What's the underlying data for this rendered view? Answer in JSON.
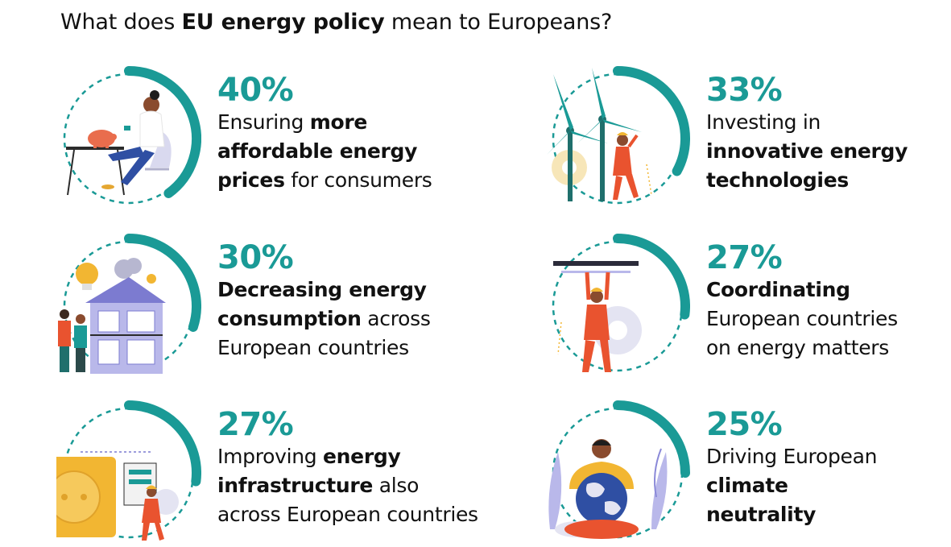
{
  "title": {
    "prefix": "What does ",
    "bold": "EU energy policy",
    "suffix": " mean to Europeans?"
  },
  "colors": {
    "accent": "#1a9a96",
    "ring_dash": "#1a9a96",
    "text": "#111111"
  },
  "items": [
    {
      "percent": "40%",
      "value": 40,
      "icon": "woman-piggy-bank-illustration",
      "lines": [
        [
          {
            "t": "Ensuring ",
            "b": false
          },
          {
            "t": "more",
            "b": true
          }
        ],
        [
          {
            "t": "affordable energy",
            "b": true
          }
        ],
        [
          {
            "t": "prices",
            "b": true
          },
          {
            "t": " for consumers",
            "b": false
          }
        ]
      ]
    },
    {
      "percent": "33%",
      "value": 33,
      "icon": "wind-turbine-worker-illustration",
      "lines": [
        [
          {
            "t": "Investing in",
            "b": false
          }
        ],
        [
          {
            "t": "innovative energy",
            "b": true
          }
        ],
        [
          {
            "t": "technologies",
            "b": true
          }
        ]
      ]
    },
    {
      "percent": "30%",
      "value": 30,
      "icon": "house-lightbulb-illustration",
      "lines": [
        [
          {
            "t": "Decreasing energy",
            "b": true
          }
        ],
        [
          {
            "t": "consumption",
            "b": true
          },
          {
            "t": " across",
            "b": false
          }
        ],
        [
          {
            "t": "European countries",
            "b": false
          }
        ]
      ]
    },
    {
      "percent": "27%",
      "value": 27,
      "icon": "worker-holding-bar-illustration",
      "lines": [
        [
          {
            "t": "Coordinating",
            "b": true
          }
        ],
        [
          {
            "t": "European countries",
            "b": false
          }
        ],
        [
          {
            "t": "on energy matters",
            "b": false
          }
        ]
      ]
    },
    {
      "percent": "27%",
      "value": 27,
      "icon": "power-socket-illustration",
      "lines": [
        [
          {
            "t": "Improving ",
            "b": false
          },
          {
            "t": "energy",
            "b": true
          }
        ],
        [
          {
            "t": "infrastructure",
            "b": true
          },
          {
            "t": " also",
            "b": false
          }
        ],
        [
          {
            "t": "across European countries",
            "b": false
          }
        ]
      ]
    },
    {
      "percent": "25%",
      "value": 25,
      "icon": "person-holding-globe-illustration",
      "lines": [
        [
          {
            "t": "Driving European",
            "b": false
          }
        ],
        [
          {
            "t": "climate",
            "b": true
          }
        ],
        [
          {
            "t": "neutrality",
            "b": true
          }
        ]
      ]
    }
  ]
}
